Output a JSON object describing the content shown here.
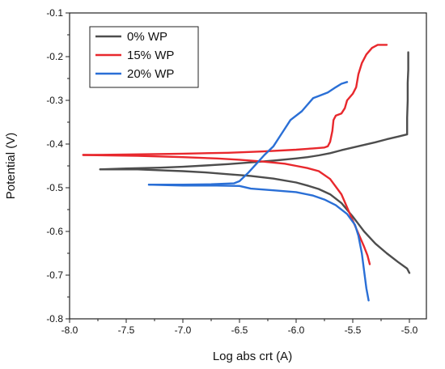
{
  "chart_data": {
    "type": "line",
    "xlabel": "Log abs crt (A)",
    "ylabel": "Potential (V)",
    "xlim": [
      -8.0,
      -4.85
    ],
    "ylim": [
      -0.8,
      -0.1
    ],
    "x_ticks": [
      -8.0,
      -7.5,
      -7.0,
      -6.5,
      -6.0,
      -5.5,
      -5.0
    ],
    "x_tick_labels": [
      "-8.0",
      "-7.5",
      "-7.0",
      "-6.5",
      "-6.0",
      "-5.5",
      "-5.0"
    ],
    "y_ticks": [
      -0.1,
      -0.2,
      -0.3,
      -0.4,
      -0.5,
      -0.6,
      -0.7,
      -0.8
    ],
    "y_tick_labels": [
      "-0.1",
      "-0.2",
      "-0.3",
      "-0.4",
      "-0.5",
      "-0.6",
      "-0.7",
      "-0.8"
    ],
    "grid": false,
    "legend_position": "top-left",
    "series": [
      {
        "name": "0% WP",
        "color": "#4d4d4d",
        "points": [
          [
            -7.73,
            -0.458
          ],
          [
            -7.5,
            -0.456
          ],
          [
            -7.2,
            -0.454
          ],
          [
            -7.0,
            -0.452
          ],
          [
            -6.8,
            -0.449
          ],
          [
            -6.6,
            -0.446
          ],
          [
            -6.4,
            -0.442
          ],
          [
            -6.2,
            -0.438
          ],
          [
            -6.0,
            -0.433
          ],
          [
            -5.9,
            -0.43
          ],
          [
            -5.8,
            -0.426
          ],
          [
            -5.7,
            -0.421
          ],
          [
            -5.6,
            -0.414
          ],
          [
            -5.5,
            -0.408
          ],
          [
            -5.4,
            -0.402
          ],
          [
            -5.3,
            -0.396
          ],
          [
            -5.2,
            -0.389
          ],
          [
            -5.1,
            -0.383
          ],
          [
            -5.02,
            -0.378
          ],
          [
            -5.02,
            -0.34
          ],
          [
            -5.015,
            -0.3
          ],
          [
            -5.015,
            -0.26
          ],
          [
            -5.01,
            -0.23
          ],
          [
            -5.01,
            -0.19
          ]
        ],
        "points_cathodic": [
          [
            -7.73,
            -0.458
          ],
          [
            -7.4,
            -0.458
          ],
          [
            -7.0,
            -0.462
          ],
          [
            -6.8,
            -0.465
          ],
          [
            -6.6,
            -0.469
          ],
          [
            -6.4,
            -0.473
          ],
          [
            -6.2,
            -0.479
          ],
          [
            -6.0,
            -0.488
          ],
          [
            -5.9,
            -0.495
          ],
          [
            -5.8,
            -0.503
          ],
          [
            -5.7,
            -0.515
          ],
          [
            -5.6,
            -0.535
          ],
          [
            -5.5,
            -0.566
          ],
          [
            -5.45,
            -0.583
          ],
          [
            -5.4,
            -0.6
          ],
          [
            -5.35,
            -0.614
          ],
          [
            -5.3,
            -0.628
          ],
          [
            -5.2,
            -0.65
          ],
          [
            -5.1,
            -0.67
          ],
          [
            -5.02,
            -0.685
          ],
          [
            -5.0,
            -0.695
          ]
        ]
      },
      {
        "name": "15% WP",
        "color": "#e8282d",
        "points": [
          [
            -7.88,
            -0.425
          ],
          [
            -7.5,
            -0.424
          ],
          [
            -7.0,
            -0.422
          ],
          [
            -6.6,
            -0.42
          ],
          [
            -6.3,
            -0.417
          ],
          [
            -6.0,
            -0.413
          ],
          [
            -5.85,
            -0.41
          ],
          [
            -5.75,
            -0.408
          ],
          [
            -5.72,
            -0.405
          ],
          [
            -5.7,
            -0.395
          ],
          [
            -5.68,
            -0.37
          ],
          [
            -5.67,
            -0.345
          ],
          [
            -5.65,
            -0.335
          ],
          [
            -5.6,
            -0.33
          ],
          [
            -5.57,
            -0.318
          ],
          [
            -5.55,
            -0.3
          ],
          [
            -5.5,
            -0.285
          ],
          [
            -5.47,
            -0.27
          ],
          [
            -5.45,
            -0.24
          ],
          [
            -5.42,
            -0.215
          ],
          [
            -5.38,
            -0.195
          ],
          [
            -5.33,
            -0.18
          ],
          [
            -5.28,
            -0.173
          ],
          [
            -5.2,
            -0.173
          ]
        ],
        "points_cathodic": [
          [
            -7.88,
            -0.425
          ],
          [
            -7.4,
            -0.427
          ],
          [
            -7.0,
            -0.43
          ],
          [
            -6.7,
            -0.433
          ],
          [
            -6.5,
            -0.436
          ],
          [
            -6.3,
            -0.44
          ],
          [
            -6.1,
            -0.445
          ],
          [
            -6.0,
            -0.45
          ],
          [
            -5.9,
            -0.455
          ],
          [
            -5.8,
            -0.462
          ],
          [
            -5.7,
            -0.48
          ],
          [
            -5.6,
            -0.515
          ],
          [
            -5.55,
            -0.545
          ],
          [
            -5.5,
            -0.575
          ],
          [
            -5.45,
            -0.605
          ],
          [
            -5.4,
            -0.635
          ],
          [
            -5.37,
            -0.655
          ],
          [
            -5.35,
            -0.675
          ]
        ]
      },
      {
        "name": "20% WP",
        "color": "#2a6fd6",
        "points": [
          [
            -7.3,
            -0.493
          ],
          [
            -7.0,
            -0.493
          ],
          [
            -6.75,
            -0.492
          ],
          [
            -6.55,
            -0.49
          ],
          [
            -6.5,
            -0.485
          ],
          [
            -6.42,
            -0.465
          ],
          [
            -6.35,
            -0.445
          ],
          [
            -6.28,
            -0.425
          ],
          [
            -6.2,
            -0.405
          ],
          [
            -6.15,
            -0.385
          ],
          [
            -6.1,
            -0.365
          ],
          [
            -6.05,
            -0.345
          ],
          [
            -5.95,
            -0.325
          ],
          [
            -5.9,
            -0.31
          ],
          [
            -5.85,
            -0.295
          ],
          [
            -5.8,
            -0.29
          ],
          [
            -5.72,
            -0.282
          ],
          [
            -5.65,
            -0.27
          ],
          [
            -5.6,
            -0.262
          ],
          [
            -5.55,
            -0.258
          ]
        ],
        "points_cathodic": [
          [
            -7.3,
            -0.493
          ],
          [
            -7.0,
            -0.495
          ],
          [
            -6.7,
            -0.495
          ],
          [
            -6.5,
            -0.496
          ],
          [
            -6.4,
            -0.502
          ],
          [
            -6.2,
            -0.506
          ],
          [
            -6.0,
            -0.51
          ],
          [
            -5.85,
            -0.518
          ],
          [
            -5.75,
            -0.527
          ],
          [
            -5.65,
            -0.54
          ],
          [
            -5.55,
            -0.56
          ],
          [
            -5.48,
            -0.585
          ],
          [
            -5.45,
            -0.61
          ],
          [
            -5.42,
            -0.65
          ],
          [
            -5.4,
            -0.69
          ],
          [
            -5.38,
            -0.73
          ],
          [
            -5.36,
            -0.758
          ]
        ]
      }
    ]
  }
}
